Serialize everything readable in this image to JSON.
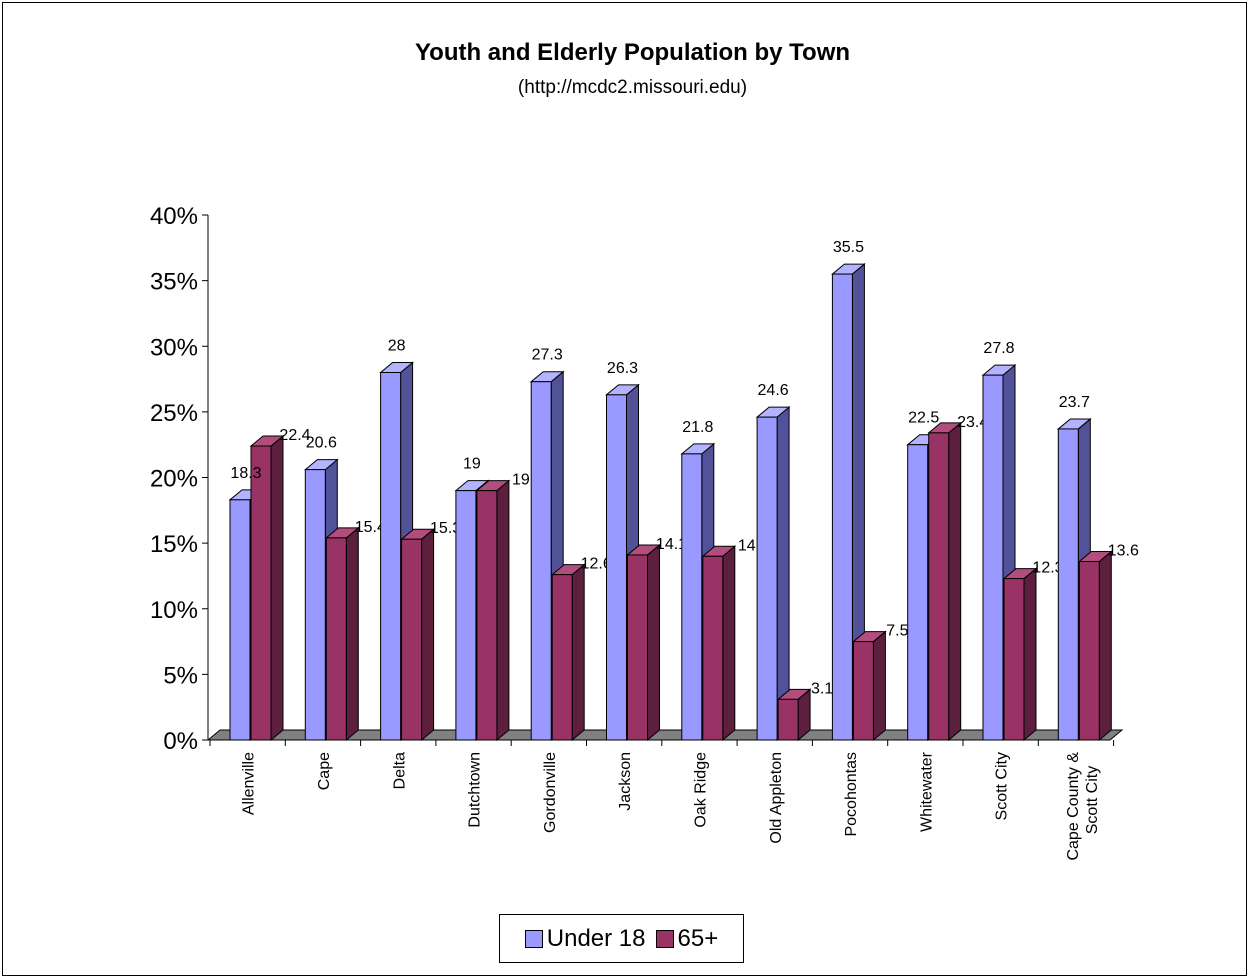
{
  "chart_data": {
    "type": "bar",
    "title": "Youth and Elderly Population by Town",
    "subtitle": "(http://mcdc2.missouri.edu)",
    "categories": [
      "Allenville",
      "Cape",
      "Delta",
      "Dutchtown",
      "Gordonville",
      "Jackson",
      "Oak Ridge",
      "Old Appleton",
      "Pocohontas",
      "Whitewater",
      "Scott City",
      "Cape County & Scott City"
    ],
    "series": [
      {
        "name": "Under 18",
        "values": [
          18.3,
          20.6,
          28,
          19,
          27.3,
          26.3,
          21.8,
          24.6,
          35.5,
          22.5,
          27.8,
          23.7
        ],
        "color": "#9999ff"
      },
      {
        "name": "65+",
        "values": [
          22.4,
          15.4,
          15.3,
          19,
          12.6,
          14.1,
          14,
          3.1,
          7.5,
          23.4,
          12.3,
          13.6
        ],
        "color": "#993366"
      }
    ],
    "y_ticks": [
      "0%",
      "5%",
      "10%",
      "15%",
      "20%",
      "25%",
      "30%",
      "35%",
      "40%"
    ],
    "ylim": [
      0,
      40
    ],
    "xlabel": "",
    "ylabel": "",
    "grid": false,
    "three_d": true,
    "legend_position": "bottom",
    "data_label_texts": {
      "Under 18": [
        "18.3",
        "20.6",
        "28",
        "19",
        "27.3",
        "26.3",
        "21.8",
        "24.6",
        "35.5",
        "22.5",
        "27.8",
        "23.7"
      ],
      "65+": [
        "22.4",
        "15.4",
        "15.3",
        "19",
        "12.6",
        "14.1",
        "14",
        "3.1",
        "7.5",
        "23.4",
        "12.3",
        "13.6"
      ]
    },
    "category_labels": [
      [
        "Allenville"
      ],
      [
        "Cape"
      ],
      [
        "Delta"
      ],
      [
        "Dutchtown"
      ],
      [
        "Gordonville"
      ],
      [
        "Jackson"
      ],
      [
        "Oak Ridge"
      ],
      [
        "Old Appleton"
      ],
      [
        "Pocohontas"
      ],
      [
        "Whitewater"
      ],
      [
        "Scott City"
      ],
      [
        "Cape County &",
        "Scott City"
      ]
    ]
  },
  "colors": {
    "under18_front": "#9999ff",
    "under18_side": "#525299",
    "under18_top": "#b3b3ff",
    "elderly_front": "#993366",
    "elderly_side": "#5c1f3d",
    "elderly_top": "#b34d7d",
    "floor": "#808080"
  }
}
